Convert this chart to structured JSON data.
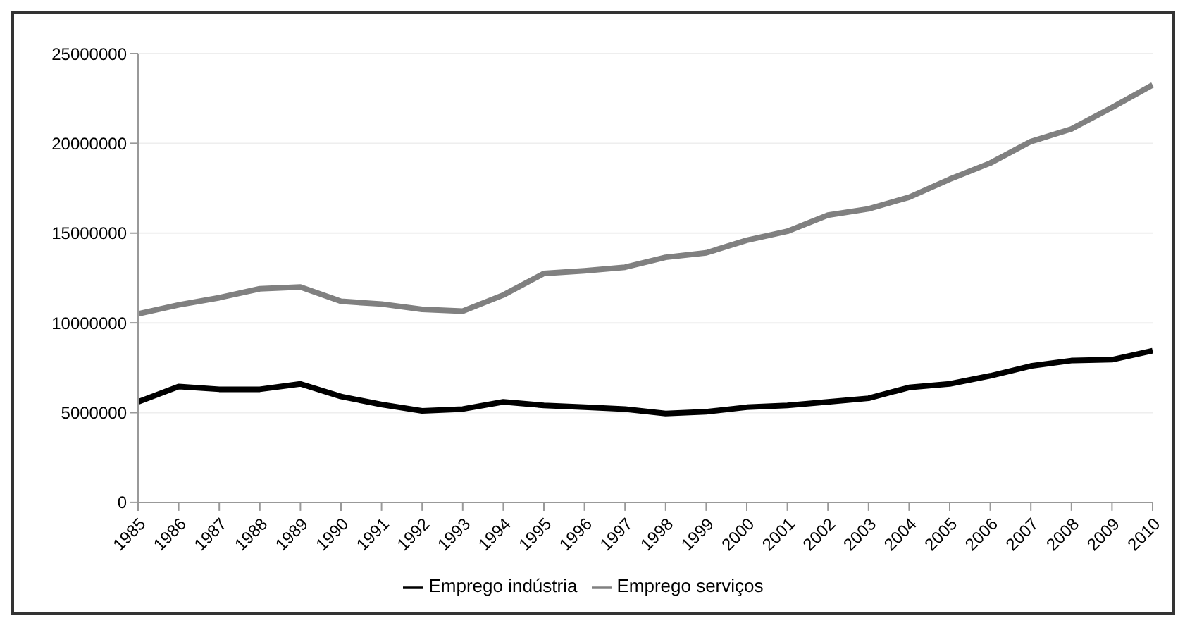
{
  "chart_data": {
    "type": "line",
    "categories": [
      "1985",
      "1986",
      "1987",
      "1988",
      "1989",
      "1990",
      "1991",
      "1992",
      "1993",
      "1994",
      "1995",
      "1996",
      "1997",
      "1998",
      "1999",
      "2000",
      "2001",
      "2002",
      "2003",
      "2004",
      "2005",
      "2006",
      "2007",
      "2008",
      "2009",
      "2010"
    ],
    "series": [
      {
        "name": "Emprego indústria",
        "color": "#000000",
        "values": [
          5600000,
          6450000,
          6300000,
          6300000,
          6600000,
          5900000,
          5450000,
          5100000,
          5200000,
          5600000,
          5400000,
          5300000,
          5200000,
          4950000,
          5050000,
          5300000,
          5400000,
          5600000,
          5800000,
          6400000,
          6600000,
          7050000,
          7600000,
          7900000,
          7950000,
          8450000
        ]
      },
      {
        "name": "Emprego serviços",
        "color": "#808080",
        "values": [
          10500000,
          11000000,
          11400000,
          11900000,
          12000000,
          11200000,
          11050000,
          10750000,
          10650000,
          11550000,
          12750000,
          12900000,
          13100000,
          13650000,
          13900000,
          14600000,
          15100000,
          16000000,
          16350000,
          17000000,
          18000000,
          18900000,
          20100000,
          20800000,
          22000000,
          23250000
        ]
      }
    ],
    "ylim": [
      0,
      25000000
    ],
    "yticks": [
      0,
      5000000,
      10000000,
      15000000,
      20000000,
      25000000
    ],
    "grid": "y",
    "legend": "bottom",
    "marker": "none",
    "line_style": "solid"
  }
}
